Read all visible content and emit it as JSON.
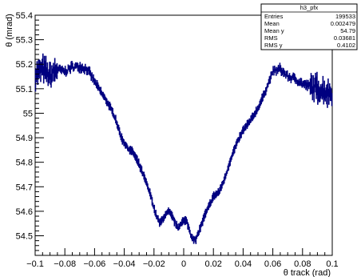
{
  "chart_data": {
    "type": "scatter",
    "title": "",
    "xlabel": "θ track (rad)",
    "ylabel": "θ (mrad)",
    "xlim": [
      -0.1,
      0.1
    ],
    "ylim": [
      54.42,
      55.4
    ],
    "x_ticks": [
      "−0.1",
      "−0.08",
      "−0.06",
      "−0.04",
      "−0.02",
      "0",
      "0.02",
      "0.04",
      "0.06",
      "0.08",
      "0.1"
    ],
    "y_ticks": [
      "54.5",
      "54.6",
      "54.7",
      "54.8",
      "54.9",
      "55",
      "55.1",
      "55.2",
      "55.3",
      "55.4"
    ],
    "grid": false,
    "marker_color": "#000080",
    "stats_box": {
      "name": "h3_pfx",
      "rows": [
        {
          "label": "Entries",
          "value": "199533"
        },
        {
          "label": "Mean",
          "value": "0.002479"
        },
        {
          "label": "Mean y",
          "value": "54.79"
        },
        {
          "label": "RMS",
          "value": "0.03681"
        },
        {
          "label": "RMS y",
          "value": "0.4102"
        }
      ]
    },
    "profile_knots": [
      [
        -0.1,
        55.16
      ],
      [
        -0.095,
        55.18
      ],
      [
        -0.09,
        55.15
      ],
      [
        -0.085,
        55.18
      ],
      [
        -0.08,
        55.17
      ],
      [
        -0.075,
        55.19
      ],
      [
        -0.07,
        55.19
      ],
      [
        -0.065,
        55.18
      ],
      [
        -0.06,
        55.13
      ],
      [
        -0.055,
        55.08
      ],
      [
        -0.05,
        55.03
      ],
      [
        -0.046,
        54.98
      ],
      [
        -0.042,
        54.9
      ],
      [
        -0.038,
        54.86
      ],
      [
        -0.034,
        54.84
      ],
      [
        -0.03,
        54.79
      ],
      [
        -0.026,
        54.73
      ],
      [
        -0.022,
        54.66
      ],
      [
        -0.019,
        54.59
      ],
      [
        -0.016,
        54.55
      ],
      [
        -0.013,
        54.58
      ],
      [
        -0.01,
        54.6
      ],
      [
        -0.007,
        54.57
      ],
      [
        -0.004,
        54.53
      ],
      [
        -0.001,
        54.56
      ],
      [
        0.002,
        54.56
      ],
      [
        0.005,
        54.5
      ],
      [
        0.008,
        54.48
      ],
      [
        0.011,
        54.53
      ],
      [
        0.014,
        54.58
      ],
      [
        0.017,
        54.62
      ],
      [
        0.02,
        54.66
      ],
      [
        0.024,
        54.68
      ],
      [
        0.028,
        54.74
      ],
      [
        0.032,
        54.82
      ],
      [
        0.036,
        54.88
      ],
      [
        0.04,
        54.93
      ],
      [
        0.045,
        54.97
      ],
      [
        0.05,
        55.02
      ],
      [
        0.055,
        55.09
      ],
      [
        0.06,
        55.17
      ],
      [
        0.065,
        55.18
      ],
      [
        0.07,
        55.15
      ],
      [
        0.075,
        55.14
      ],
      [
        0.08,
        55.12
      ],
      [
        0.085,
        55.11
      ],
      [
        0.09,
        55.1
      ],
      [
        0.095,
        55.09
      ],
      [
        0.1,
        55.08
      ]
    ]
  }
}
